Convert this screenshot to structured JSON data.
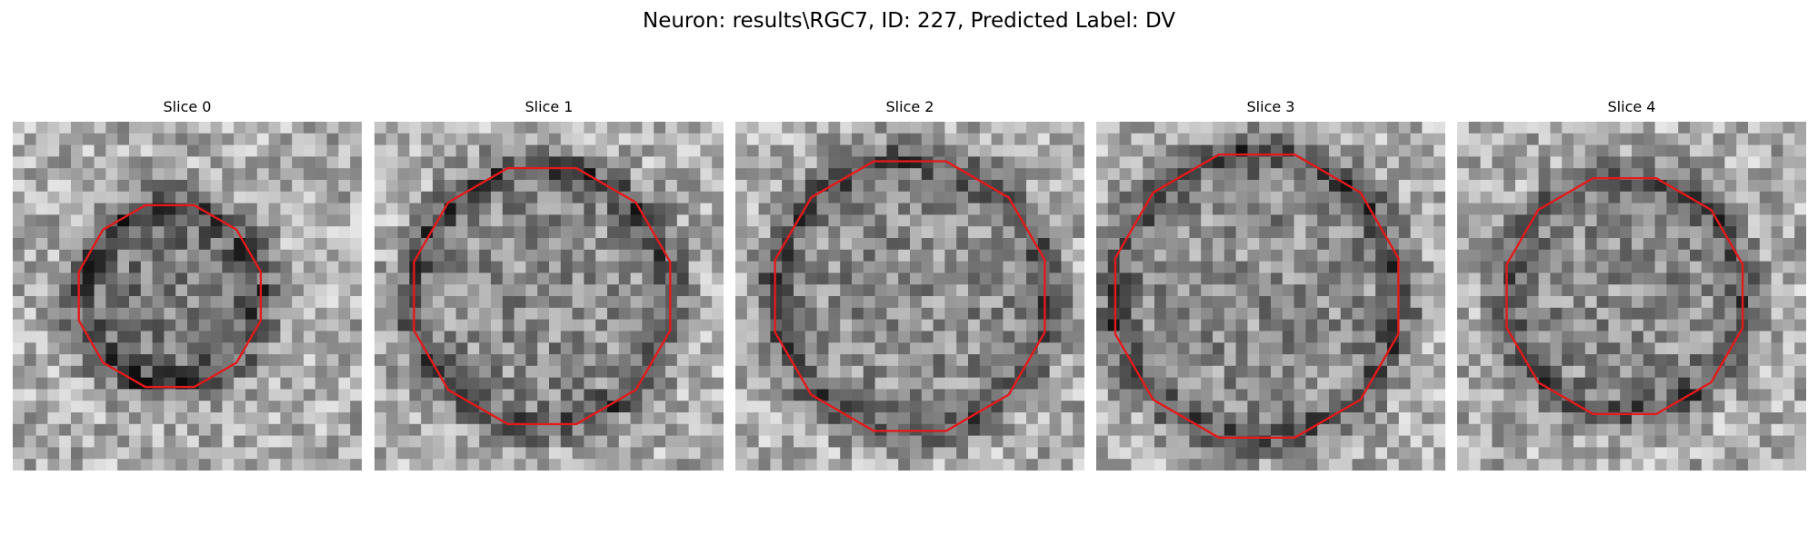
{
  "figure": {
    "title": "Neuron: results\\RGC7, ID: 227, Predicted Label: DV"
  },
  "colors": {
    "contour": "#e31a1c",
    "colormap": "gray"
  },
  "slices": [
    {
      "title": "Slice 0",
      "center": [
        0.45,
        0.5
      ],
      "radius": 0.27,
      "intensity_image": "grayscale noise patch with darker cell body"
    },
    {
      "title": "Slice 1",
      "center": [
        0.48,
        0.5
      ],
      "radius": 0.38,
      "intensity_image": "grayscale noise patch with darker cell body"
    },
    {
      "title": "Slice 2",
      "center": [
        0.5,
        0.5
      ],
      "radius": 0.4,
      "intensity_image": "grayscale noise patch with darker cell body"
    },
    {
      "title": "Slice 3",
      "center": [
        0.46,
        0.5
      ],
      "radius": 0.42,
      "intensity_image": "grayscale noise patch with darker cell body"
    },
    {
      "title": "Slice 4",
      "center": [
        0.48,
        0.5
      ],
      "radius": 0.35,
      "intensity_image": "grayscale noise patch with darker cell body"
    }
  ]
}
